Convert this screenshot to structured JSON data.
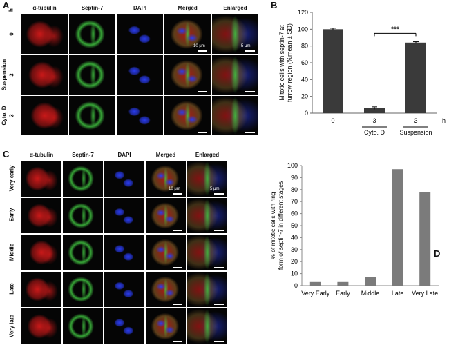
{
  "panel_a": {
    "letter": "A",
    "columns": [
      "α-tubulin",
      "Septin-7",
      "DAPI",
      "Merged",
      "Enlarged"
    ],
    "h_label": "h",
    "rows": [
      {
        "number": "0",
        "group": ""
      },
      {
        "number": "3",
        "group": "Suspension"
      },
      {
        "number": "3",
        "group": "Cyto. D"
      }
    ],
    "scale_merged": "10 μm",
    "scale_enlarged": "5 μm"
  },
  "panel_c": {
    "letter": "C",
    "columns": [
      "α-tubulin",
      "Septin-7",
      "DAPI",
      "Merged",
      "Enlarged"
    ],
    "rows": [
      "Very early",
      "Early",
      "Middle",
      "Late",
      "Very late"
    ],
    "scale_merged": "10 μm",
    "scale_enlarged": "5 μm"
  },
  "colors": {
    "red": "#d41a1a",
    "green": "#3fbf3f",
    "blue": "#2a3cf0",
    "bar_dark": "#3a3a3a",
    "bar_gray": "#7b7b7b"
  },
  "chart_data": [
    {
      "panel": "B",
      "type": "bar",
      "categories": [
        "0",
        "3",
        "3"
      ],
      "category_groups": [
        "",
        "Cyto. D",
        "Suspension"
      ],
      "x_unit": "h",
      "values": [
        100,
        6,
        84
      ],
      "errors": [
        1.2,
        1.5,
        1.0
      ],
      "ylabel": "Mitotic cells with septin-7 at furrow region (%mean ± SD)",
      "ylim": [
        0,
        120
      ],
      "yticks": [
        0,
        20,
        40,
        60,
        80,
        100,
        120
      ],
      "significance": "***",
      "color": "#3a3a3a"
    },
    {
      "panel": "D",
      "type": "bar",
      "categories": [
        "Very Early",
        "Early",
        "Middle",
        "Late",
        "Very Late"
      ],
      "values": [
        3,
        3,
        7,
        97,
        78
      ],
      "ylabel": "% of mitotic cells with ring form of septin-7 in different stages",
      "ylim": [
        0,
        100
      ],
      "yticks": [
        0,
        10,
        20,
        30,
        40,
        50,
        60,
        70,
        80,
        90,
        100
      ],
      "color": "#7b7b7b"
    }
  ]
}
